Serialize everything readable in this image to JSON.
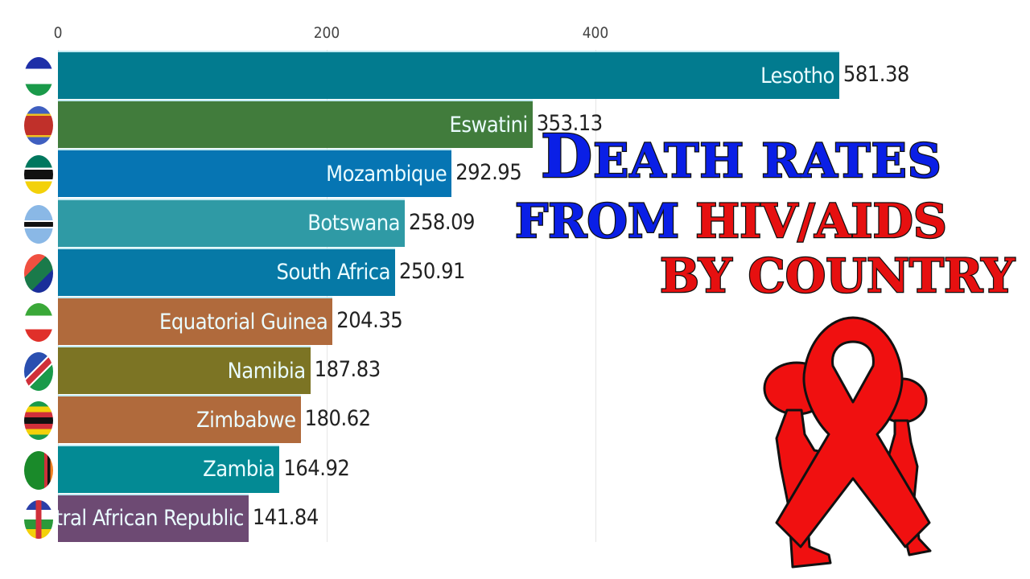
{
  "chart_data": {
    "type": "bar",
    "orientation": "horizontal",
    "title": "Death rates from HIV/AIDS by country",
    "xlabel": "",
    "ylabel": "",
    "x_ticks": [
      "0",
      "200",
      "400"
    ],
    "xlim": [
      0,
      600
    ],
    "grid": true,
    "categories": [
      "Lesotho",
      "Eswatini",
      "Mozambique",
      "Botswana",
      "South Africa",
      "Equatorial Guinea",
      "Namibia",
      "Zimbabwe",
      "Zambia",
      "Central African Republic"
    ],
    "values": [
      581.38,
      353.13,
      292.95,
      258.09,
      250.91,
      204.35,
      187.83,
      180.62,
      164.92,
      141.84
    ],
    "value_labels": [
      "581.38",
      "353.13",
      "292.95",
      "258.09",
      "250.91",
      "204.35",
      "187.83",
      "180.62",
      "164.92",
      "141.84"
    ],
    "bar_colors": [
      "#027b8f",
      "#417c3c",
      "#0675b3",
      "#2f9aa5",
      "#0679a6",
      "#b06a3c",
      "#7c7424",
      "#b06a3c",
      "#038a94",
      "#6d4a73"
    ],
    "bar_label_display": [
      "Lesotho",
      "Eswatini",
      "Mozambique",
      "Botswana",
      "South Africa",
      "Equatorial Guinea",
      "Namibia",
      "Zimbabwe",
      "Zambia",
      "ntral African Republic"
    ]
  },
  "overlay_title": {
    "line1_big": "D",
    "line1_rest": "EATH RATES",
    "line2_blue": "FROM ",
    "line2_red": "HIV/AIDS",
    "line3": "BY COUNTRY"
  },
  "logo": {
    "icon": "red-ribbon-with-figures-icon"
  }
}
